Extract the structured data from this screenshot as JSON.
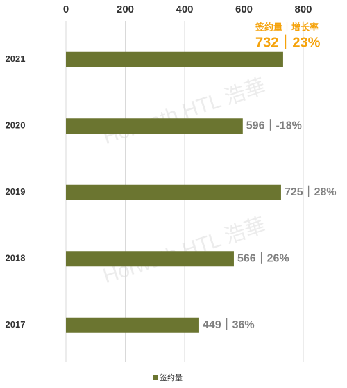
{
  "chart_data": {
    "type": "bar",
    "orientation": "horizontal",
    "categories": [
      "2021",
      "2020",
      "2019",
      "2018",
      "2017"
    ],
    "series": [
      {
        "name": "签约量",
        "color": "#6b7530",
        "values": [
          732,
          596,
          725,
          566,
          449
        ],
        "value_labels": [
          "732｜23%",
          "596｜-18%",
          "725｜28%",
          "566｜26%",
          "449｜36%"
        ]
      }
    ],
    "xlim": [
      0,
      800
    ],
    "xticks": [
      0,
      200,
      400,
      600,
      800
    ],
    "grid": true,
    "highlight_color": "#f5a20a",
    "highlight_header": "签约量｜增长率",
    "watermark": "Horwath HTL 浩華",
    "legend": "bottom"
  }
}
